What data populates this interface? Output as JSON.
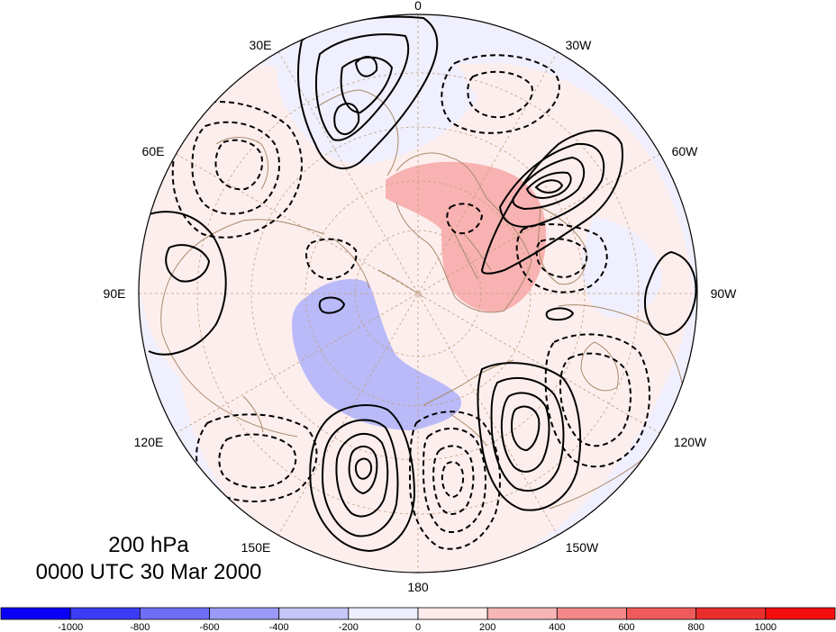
{
  "title": {
    "level": "200 hPa",
    "time": "0000 UTC 30 Mar 2000"
  },
  "longitude_labels": [
    "0",
    "30W",
    "60W",
    "90W",
    "120W",
    "150W",
    "180",
    "150E",
    "120E",
    "90E",
    "60E",
    "30E"
  ],
  "colorbar": {
    "labels": [
      "-1000",
      "-800",
      "-600",
      "-400",
      "-200",
      "0",
      "200",
      "400",
      "600",
      "800",
      "1000"
    ],
    "colors": [
      "#0a00f5",
      "#3c3cf6",
      "#6e6ef6",
      "#9a9af8",
      "#c6c6fa",
      "#eeeefe",
      "#fdeaea",
      "#f6b6b6",
      "#f28888",
      "#ef5a5a",
      "#ea2e2e",
      "#f40e0e"
    ]
  },
  "colors": {
    "positive_fill": "#f8b0b0",
    "negative_fill": "#b8b8f8",
    "weak_positive": "#fdeeee",
    "weak_negative": "#eeeefd",
    "coastline": "#a88a6a",
    "contour": "#000000"
  }
}
